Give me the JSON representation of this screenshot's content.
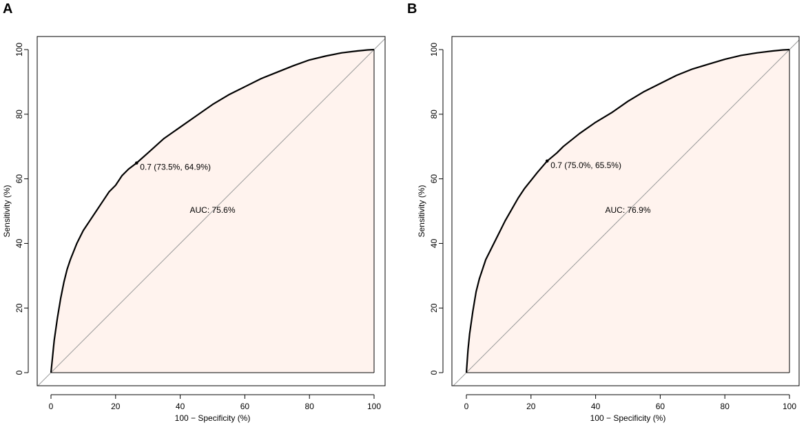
{
  "chart_data": [
    {
      "type": "line",
      "panel_label": "A",
      "title": "",
      "xlabel": "100 − Specificity (%)",
      "ylabel": "Sensitivity (%)",
      "xlim": [
        0,
        100
      ],
      "ylim": [
        0,
        100
      ],
      "xticks": [
        "0",
        "20",
        "40",
        "60",
        "80",
        "100"
      ],
      "yticks": [
        "0",
        "20",
        "40",
        "60",
        "80",
        "100"
      ],
      "series": [
        {
          "name": "ROC",
          "x": [
            0,
            0.5,
            1,
            2,
            3,
            4,
            5,
            6,
            8,
            10,
            12,
            14,
            16,
            18,
            20,
            22,
            24,
            26.5,
            30,
            35,
            40,
            45,
            50,
            55,
            60,
            65,
            70,
            75,
            80,
            85,
            90,
            95,
            98,
            100
          ],
          "y": [
            0,
            5,
            10,
            17,
            23,
            28,
            32,
            35,
            40,
            44,
            47,
            50,
            53,
            56,
            58,
            61,
            63,
            64.9,
            68,
            72.5,
            76,
            79.5,
            83,
            86,
            88.5,
            91,
            93,
            95,
            96.8,
            98,
            99,
            99.6,
            99.9,
            100
          ]
        },
        {
          "name": "reference",
          "x": [
            0,
            100
          ],
          "y": [
            0,
            100
          ]
        }
      ],
      "threshold_point": {
        "x": 26.5,
        "y": 64.9
      },
      "annotations": {
        "threshold_label": "0.7 (73.5%, 64.9%)",
        "auc_label": "AUC: 75.6%"
      },
      "colors": {
        "fill": "#fff3ee",
        "line": "#000000",
        "reference": "#9b9b9b"
      }
    },
    {
      "type": "line",
      "panel_label": "B",
      "title": "",
      "xlabel": "100 − Specificity (%)",
      "ylabel": "Sensitivity (%)",
      "xlim": [
        0,
        100
      ],
      "ylim": [
        0,
        100
      ],
      "xticks": [
        "0",
        "20",
        "40",
        "60",
        "80",
        "100"
      ],
      "yticks": [
        "0",
        "20",
        "40",
        "60",
        "80",
        "100"
      ],
      "series": [
        {
          "name": "ROC",
          "x": [
            0,
            0.5,
            1,
            2,
            3,
            4,
            5,
            6,
            8,
            10,
            12,
            14,
            16,
            18,
            20,
            22,
            25,
            28,
            30,
            35,
            40,
            45,
            50,
            55,
            60,
            65,
            70,
            75,
            80,
            85,
            90,
            95,
            98,
            100
          ],
          "y": [
            0,
            7,
            12,
            19,
            25,
            29,
            32,
            35,
            39,
            43,
            47,
            50.5,
            54,
            57,
            59.5,
            62,
            65.5,
            68,
            70,
            74,
            77.5,
            80.5,
            84,
            87,
            89.5,
            92,
            94,
            95.5,
            97,
            98.2,
            99,
            99.6,
            99.9,
            100
          ]
        },
        {
          "name": "reference",
          "x": [
            0,
            100
          ],
          "y": [
            0,
            100
          ]
        }
      ],
      "threshold_point": {
        "x": 25,
        "y": 65.5
      },
      "annotations": {
        "threshold_label": "0.7 (75.0%, 65.5%)",
        "auc_label": "AUC: 76.9%"
      },
      "colors": {
        "fill": "#fff3ee",
        "line": "#000000",
        "reference": "#9b9b9b"
      }
    }
  ]
}
